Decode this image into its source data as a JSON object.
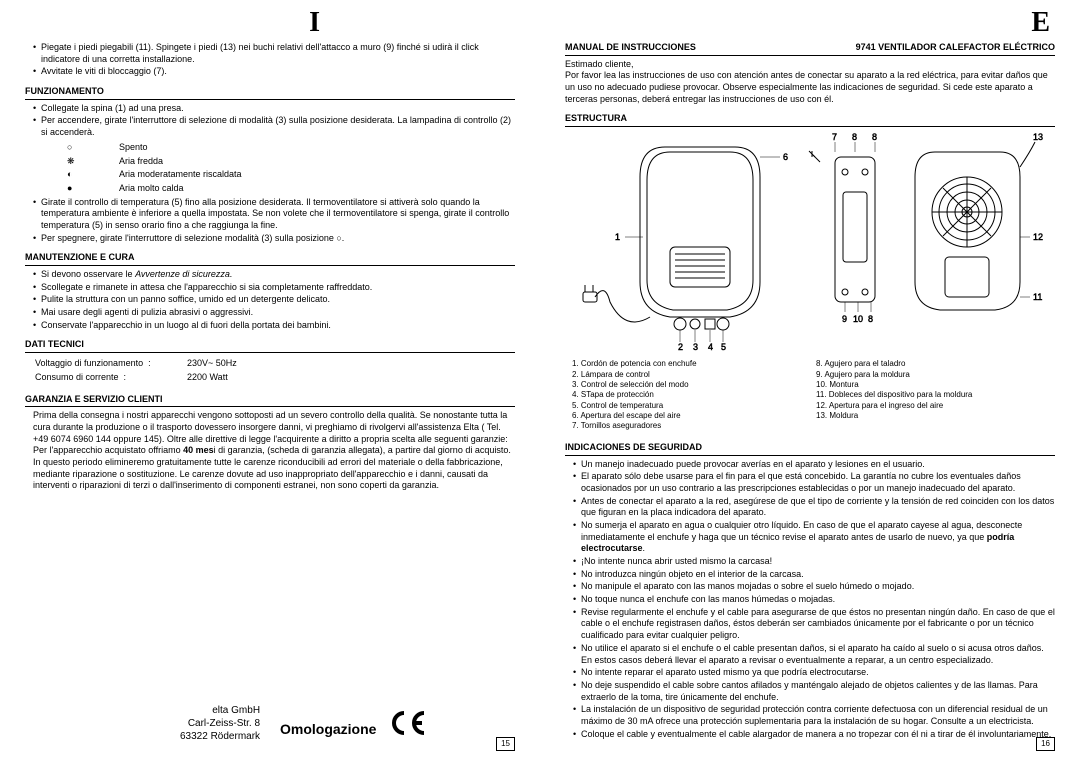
{
  "left": {
    "langLetter": "I",
    "intro": [
      "Piegate i piedi piegabili (11). Spingete i piedi (13) nei buchi relativi dell'attacco a muro (9) finché si udirà il click indicatore di una corretta installazione.",
      "Avvitate le viti di bloccaggio (7)."
    ],
    "funzionamento": {
      "title": "FUNZIONAMENTO",
      "items1": [
        "Collegate la spina (1) ad una presa.",
        "Per accendere, girate l'interruttore di selezione di modalità (3) sulla posizione desiderata. La lampadina di controllo (2) si accenderà."
      ],
      "symbols": [
        {
          "sym": "○",
          "label": "Spento"
        },
        {
          "sym": "❋",
          "label": "Aria fredda"
        },
        {
          "sym": "◐",
          "label": "Aria moderatamente riscaldata"
        },
        {
          "sym": "●",
          "label": "Aria molto calda"
        }
      ],
      "items2": [
        "Girate il controllo di temperatura (5) fino alla posizione desiderata. Il termoventilatore si attiverà solo quando la temperatura ambiente è inferiore a quella impostata. Se non volete che il termoventilatore si spenga, girate il controllo temperatura (5) in senso orario fino a che raggiunga la fine.",
        "Per spegnere, girate l'interruttore di selezione modalità (3) sulla posizione ○."
      ]
    },
    "manutenzione": {
      "title": "MANUTENZIONE E CURA",
      "intro": "Si devono osservare le ",
      "introItalic": "Avvertenze di sicurezza.",
      "items": [
        "Scollegate e rimanete in attesa che l'apparecchio si sia completamente raffreddato.",
        "Pulite la struttura con un panno soffice, umido ed un detergente delicato.",
        "Mai usare degli agenti di pulizia abrasivi o aggressivi.",
        "Conservate l'apparecchio in un luogo al di fuori della portata dei bambini."
      ]
    },
    "dati": {
      "title": "DATI TECNICI",
      "rows": [
        {
          "label": "Voltaggio di funzionamento",
          "value": "230V~ 50Hz"
        },
        {
          "label": "Consumo di corrente",
          "value": "2200 Watt"
        }
      ]
    },
    "garanzia": {
      "title": "GARANZIA E SERVIZIO CLIENTI",
      "text": "Prima della consegna i nostri apparecchi vengono sottoposti ad un severo controllo della qualità. Se nonostante tutta la cura durante la produzione o il trasporto dovessero insorgere danni, vi preghiamo di rivolgervi all'assistenza Elta ( Tel. +49 6074 6960 144 oppure 145). Oltre alle direttive di legge l'acquirente a diritto a propria scelta alle seguenti garanzie: Per l'apparecchio acquistato offriamo <b>40 mes</b>i di garanzia, (scheda di garanzia allegata), a partire dal giorno di acquisto. In questo periodo elimineremo gratuitamente tutte le carenze riconducibili ad errori del materiale o della fabbricazione, mediante riparazione o sostituzione. Le carenze dovute ad uso inappropriato dell'apparecchio e i danni, causati da interventi o riparazioni di terzi o dall'inserimento di componenti estranei, non sono coperti da garanzia."
    },
    "company": {
      "name": "elta GmbH",
      "addr1": "Carl-Zeiss-Str. 8",
      "addr2": "63322 Rödermark"
    },
    "omolog": "Omologazione",
    "pageNum": "15"
  },
  "right": {
    "langLetter": "E",
    "header": {
      "left": "MANUAL DE INSTRUCCIONES",
      "right": "9741  VENTILADOR CALEFACTOR ELÉCTRICO"
    },
    "greeting": "Estimado cliente,",
    "intro": "Por favor lea las instrucciones de uso con atención antes de conectar su aparato a la red eléctrica, para evitar daños que un uso no adecuado pudiese provocar. Observe especialmente las indicaciones de seguridad. Si cede este aparato a terceras personas, deberá entregar las instrucciones de uso con él.",
    "estructura": {
      "title": "ESTRUCTURA",
      "callouts": {
        "1": "1",
        "2": "2",
        "3": "3",
        "4": "4",
        "5": "5",
        "6": "6",
        "7": "7",
        "8a": "8",
        "8b": "8",
        "9": "9",
        "10": "10",
        "11": "11",
        "12": "12",
        "13": "13"
      },
      "partsLeft": [
        "1. Cordón de potencia con enchufe",
        "2. Lámpara de control",
        "3. Control de selección del modo",
        "4. STapa de protección",
        "5. Control de temperatura",
        "6. Apertura del escape del aire",
        "7. Tornillos aseguradores"
      ],
      "partsRight": [
        "8. Agujero para el taladro",
        "9. Agujero para la moldura",
        "10. Montura",
        "11. Dobleces del dispositivo para la moldura",
        "12. Apertura para el ingreso del aire",
        "13. Moldura"
      ]
    },
    "seguridad": {
      "title": "INDICACIONES DE SEGURIDAD",
      "items": [
        "Un manejo inadecuado puede provocar averías en el aparato y lesiones en el usuario.",
        "El aparato sólo debe usarse para el fin para el que está concebido. La garantía no cubre los eventuales daños ocasionados por un uso contrario a las prescripciones establecidas o por un manejo inadecuado del aparato.",
        "Antes de conectar el aparato a la red, asegúrese de que el tipo de corriente y la tensión de red coinciden con los datos que figuran en la placa indicadora del aparato.",
        "No sumerja el aparato en agua o cualquier otro líquido. En caso de que el aparato cayese al agua, desconecte inmediatamente el enchufe y haga que un técnico revise el aparato antes de usarlo de nuevo, ya que <b>podría electrocutarse</b>.",
        "¡No intente nunca abrir usted mismo la carcasa!",
        "No introduzca ningún objeto en el interior de la carcasa.",
        "No manipule el aparato con las manos mojadas o sobre el suelo húmedo o mojado.",
        "No toque nunca el enchufe con las manos húmedas o mojadas.",
        "Revise regularmente el enchufe y el cable para asegurarse de que éstos no presentan ningún daño. En caso de que el cable o el enchufe registrasen daños, éstos deberán ser cambiados únicamente por el fabricante o por un técnico cualificado para evitar cualquier peligro.",
        "No utilice el aparato si el enchufe o el cable presentan daños, si el aparato ha caído al suelo o si acusa otros daños. En estos casos deberá llevar el aparato a revisar o eventualmente a reparar, a un centro especializado.",
        "No intente reparar el aparato usted mismo ya que podría electrocutarse.",
        "No deje suspendido el cable sobre cantos afilados y manténgalo alejado de objetos calientes y de las llamas. Para extraerlo de la toma, tire únicamente del enchufe.",
        "La instalación de un dispositivo de seguridad protección contra corriente defectuosa con un diferencial residual de un máximo de 30 mA ofrece una protección suplementaria para la instalación de su hogar. Consulte a un electricista.",
        "Coloque el cable y eventualmente el cable alargador de manera a no tropezar con él ni a tirar de él involuntariamente."
      ]
    },
    "pageNum": "16"
  }
}
